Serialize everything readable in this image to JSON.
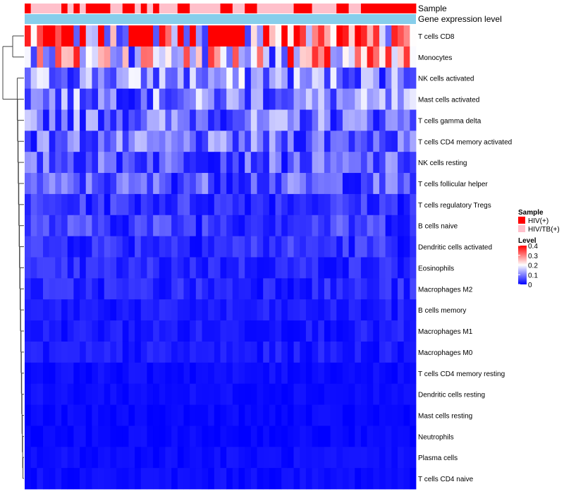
{
  "chart_data": {
    "type": "heatmap",
    "annotations": [
      {
        "name": "Sample"
      },
      {
        "name": "Gene expression level"
      }
    ],
    "sample_groups": [
      "HIV(+)",
      "HIV/TB(+)",
      "HIV/TB(+)",
      "HIV/TB(+)",
      "HIV/TB(+)",
      "HIV/TB(+)",
      "HIV(+)",
      "HIV/TB(+)",
      "HIV(+)",
      "HIV/TB(+)",
      "HIV(+)",
      "HIV(+)",
      "HIV(+)",
      "HIV(+)",
      "HIV/TB(+)",
      "HIV/TB(+)",
      "HIV(+)",
      "HIV(+)",
      "HIV/TB(+)",
      "HIV(+)",
      "HIV/TB(+)",
      "HIV(+)",
      "HIV/TB(+)",
      "HIV/TB(+)",
      "HIV/TB(+)",
      "HIV(+)",
      "HIV(+)",
      "HIV/TB(+)",
      "HIV/TB(+)",
      "HIV/TB(+)",
      "HIV/TB(+)",
      "HIV/TB(+)",
      "HIV(+)",
      "HIV(+)",
      "HIV/TB(+)",
      "HIV/TB(+)",
      "HIV(+)",
      "HIV(+)",
      "HIV/TB(+)",
      "HIV/TB(+)",
      "HIV/TB(+)",
      "HIV/TB(+)",
      "HIV/TB(+)",
      "HIV/TB(+)",
      "HIV(+)",
      "HIV(+)",
      "HIV(+)",
      "HIV/TB(+)",
      "HIV/TB(+)",
      "HIV/TB(+)",
      "HIV/TB(+)",
      "HIV(+)",
      "HIV(+)",
      "HIV/TB(+)",
      "HIV/TB(+)",
      "HIV(+)",
      "HIV(+)",
      "HIV(+)",
      "HIV(+)",
      "HIV(+)",
      "HIV(+)",
      "HIV(+)",
      "HIV(+)",
      "HIV(+)"
    ],
    "rows": [
      "T cells CD8",
      "Monocytes",
      "NK cells activated",
      "Mast cells activated",
      "T cells gamma delta",
      "T cells CD4 memory activated",
      "NK cells resting",
      "T cells follicular helper",
      "T cells regulatory  Tregs",
      "B cells naive",
      "Dendritic cells activated",
      "Eosinophils",
      "Macrophages M2",
      "B cells memory",
      "Macrophages M1",
      "Macrophages M0",
      "T cells CD4 memory resting",
      "Dendritic cells resting",
      "Mast cells resting",
      "Neutrophils",
      "Plasma cells",
      "T cells CD4 naive"
    ],
    "row_means": [
      0.32,
      0.21,
      0.11,
      0.1,
      0.09,
      0.08,
      0.07,
      0.07,
      0.04,
      0.05,
      0.04,
      0.03,
      0.03,
      0.02,
      0.02,
      0.02,
      0.01,
      0.01,
      0.005,
      0.005,
      0.01,
      0.01
    ],
    "legend": {
      "sample": {
        "title": "Sample",
        "entries": [
          "HIV(+)",
          "HIV/TB(+)"
        ]
      },
      "level": {
        "title": "Level",
        "ticks": [
          0.4,
          0.3,
          0.2,
          0.1,
          0
        ],
        "range": [
          0,
          0.4
        ]
      }
    },
    "colors": {
      "hiv": "#ff0000",
      "hivtb": "#ffc0cb",
      "gene_level": "#87ceeb",
      "low": "#0000ff",
      "mid": "#ffffff",
      "high": "#ff0000"
    }
  }
}
